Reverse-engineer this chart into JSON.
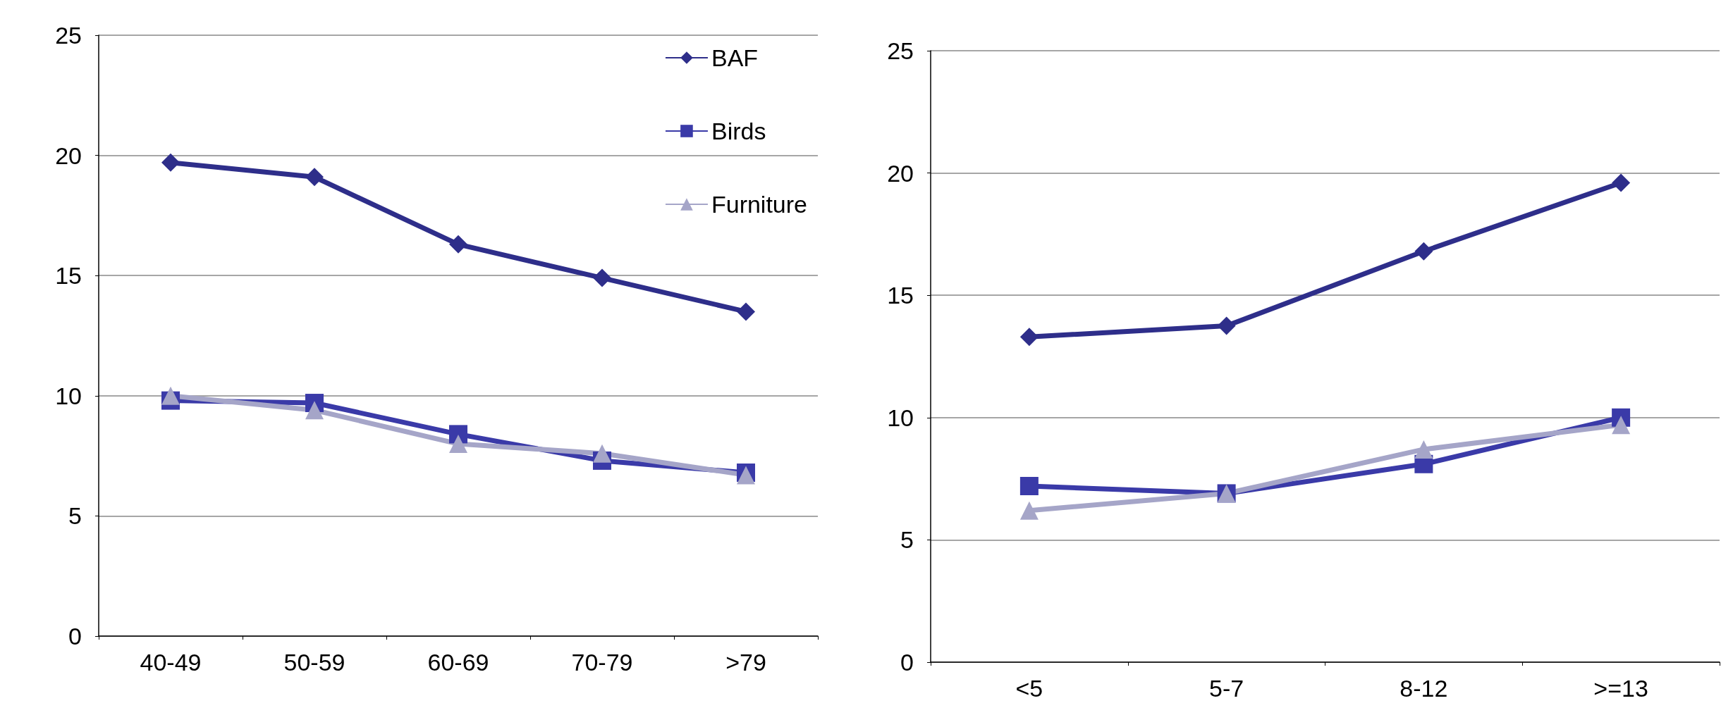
{
  "chart_data": [
    {
      "type": "line",
      "categories": [
        "40-49",
        "50-59",
        "60-69",
        "70-79",
        ">79"
      ],
      "ylim": [
        0,
        25
      ],
      "yticks": [
        0,
        5,
        10,
        15,
        20,
        25
      ],
      "grid": "y",
      "legend": "top right",
      "series": [
        {
          "name": "BAF",
          "color": "#2e2e8a",
          "marker": "diamond",
          "values": [
            19.7,
            19.1,
            16.3,
            14.9,
            13.5
          ]
        },
        {
          "name": "Birds",
          "color": "#3a3aa8",
          "marker": "square",
          "values": [
            9.8,
            9.7,
            8.4,
            7.3,
            6.8
          ]
        },
        {
          "name": "Furniture",
          "color": "#a5a5c8",
          "marker": "triangle",
          "values": [
            10.0,
            9.4,
            8.0,
            7.6,
            6.7
          ]
        }
      ]
    },
    {
      "type": "line",
      "categories": [
        "<5",
        "5-7",
        "8-12",
        ">=13"
      ],
      "ylim": [
        0,
        25
      ],
      "yticks": [
        0,
        5,
        10,
        15,
        20,
        25
      ],
      "grid": "y",
      "series": [
        {
          "color": "#2e2e8a",
          "marker": "diamond",
          "values": [
            13.3,
            13.75,
            16.8,
            19.6
          ]
        },
        {
          "color": "#3a3aa8",
          "marker": "square",
          "values": [
            7.2,
            6.9,
            8.1,
            10.0
          ]
        },
        {
          "color": "#a5a5c8",
          "marker": "triangle",
          "values": [
            6.2,
            6.9,
            8.7,
            9.7
          ]
        }
      ]
    }
  ]
}
